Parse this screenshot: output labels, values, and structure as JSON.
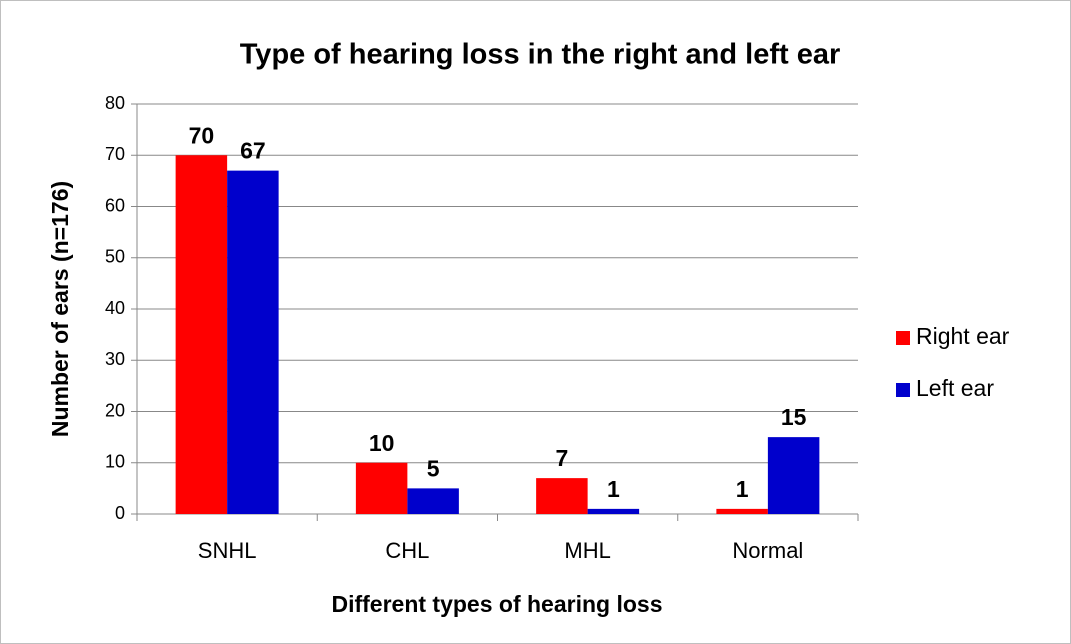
{
  "chart_data": {
    "type": "bar",
    "title": "Type of hearing loss in the right and left ear",
    "x_label": "Different types of hearing loss",
    "y_label": "Number of ears (n=176)",
    "categories": [
      "SNHL",
      "CHL",
      "MHL",
      "Normal"
    ],
    "series": [
      {
        "name": "Right ear",
        "color": "#ff0000",
        "values": [
          70,
          10,
          7,
          1
        ]
      },
      {
        "name": "Left ear",
        "color": "#0000cc",
        "values": [
          67,
          5,
          1,
          15
        ]
      }
    ],
    "ylim": [
      0,
      80
    ],
    "yticks": [
      0,
      10,
      20,
      30,
      40,
      50,
      60,
      70,
      80
    ],
    "grid": true,
    "legend": "right"
  }
}
